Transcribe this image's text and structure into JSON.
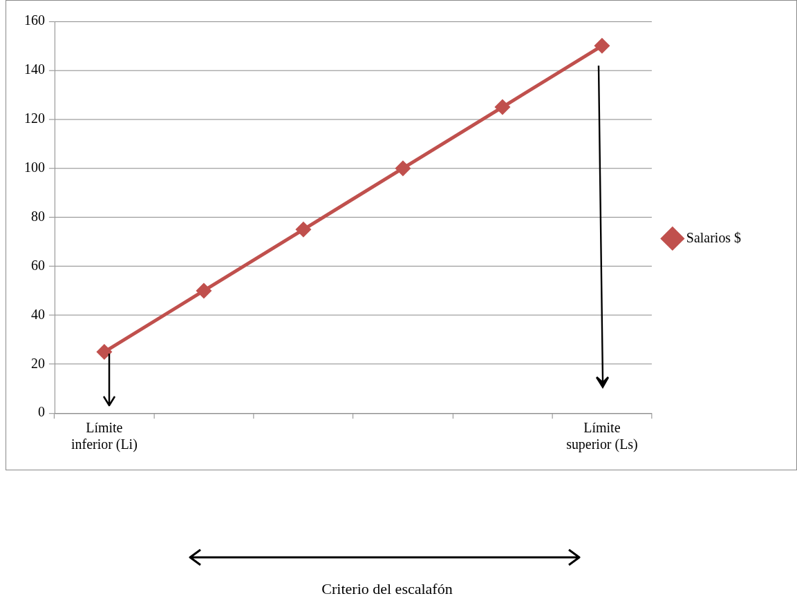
{
  "chart_data": {
    "type": "line",
    "categories": [
      "Límite inferior (Li)",
      null,
      null,
      null,
      null,
      "Límite superior (Ls)"
    ],
    "series": [
      {
        "name": "Salarios $",
        "color": "#c0504d",
        "values": [
          25,
          50,
          75,
          100,
          125,
          150
        ]
      }
    ],
    "ylim": [
      0,
      160
    ],
    "yticks": [
      0,
      20,
      40,
      60,
      80,
      100,
      120,
      140,
      160
    ],
    "grid": "y",
    "legend": "right",
    "marker": "diamond",
    "line_style": "solid",
    "annotations": [
      "Criterio del escalafón"
    ]
  }
}
